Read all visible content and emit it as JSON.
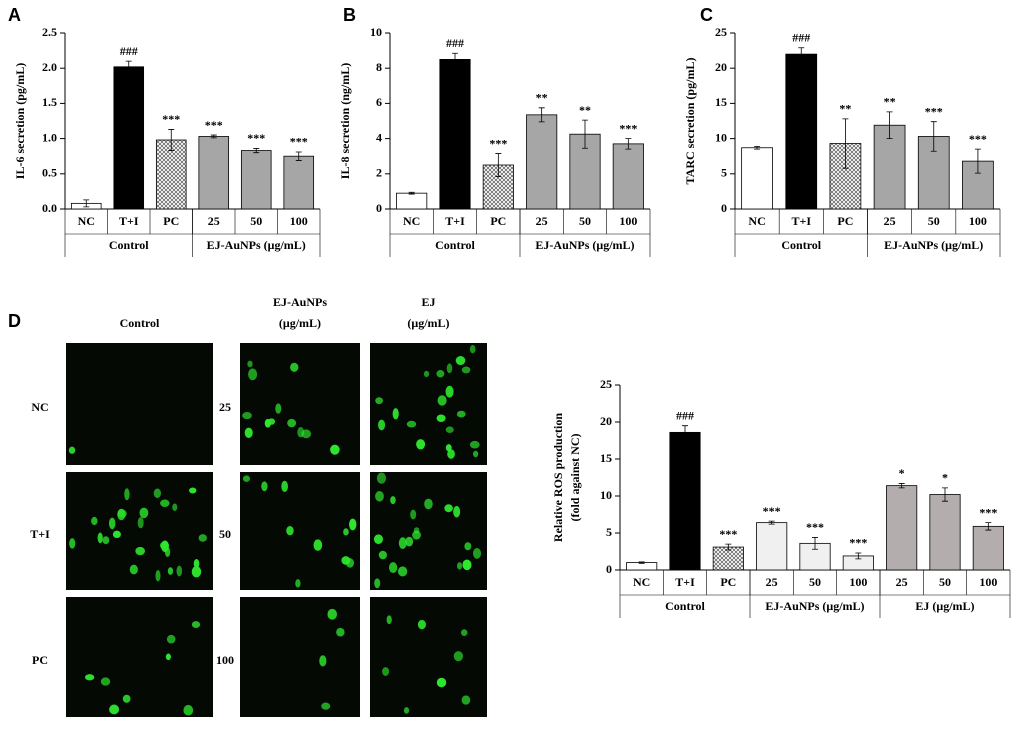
{
  "chart_data": [
    {
      "type": "bar",
      "panel": "A",
      "ylabel": [
        "IL-6 secretion (pg/mL)"
      ],
      "categories": [
        "NC",
        "T+I",
        "PC",
        "25",
        "50",
        "100"
      ],
      "values": [
        0.08,
        2.02,
        0.98,
        1.03,
        0.83,
        0.75
      ],
      "errors": [
        0.05,
        0.08,
        0.15,
        0.02,
        0.03,
        0.06
      ],
      "annotations": [
        null,
        "###",
        "***",
        "***",
        "***",
        "***"
      ],
      "colors": [
        "#ffffff",
        "#000000",
        "#ffffff",
        "#a6a6a6",
        "#a6a6a6",
        "#a6a6a6"
      ],
      "hatch": [
        false,
        false,
        true,
        false,
        false,
        false
      ],
      "groups": [
        {
          "label": "Control",
          "span": 3
        },
        {
          "label": "EJ-AuNPs (μg/mL)",
          "span": 3
        }
      ],
      "ylim": [
        0,
        2.5
      ],
      "yticks": [
        {
          "value": 0,
          "label": "0.0"
        },
        0.5,
        {
          "value": 1,
          "label": "1.0"
        },
        1.5,
        {
          "value": 2,
          "label": "2.0"
        },
        2.5
      ]
    },
    {
      "type": "bar",
      "panel": "B",
      "ylabel": [
        "IL-8 secretion (ng/mL)"
      ],
      "categories": [
        "NC",
        "T+I",
        "PC",
        "25",
        "50",
        "100"
      ],
      "values": [
        0.9,
        8.5,
        2.5,
        5.35,
        4.25,
        3.7
      ],
      "errors": [
        0.05,
        0.35,
        0.65,
        0.4,
        0.8,
        0.3
      ],
      "annotations": [
        null,
        "###",
        "***",
        "**",
        "**",
        "***"
      ],
      "colors": [
        "#ffffff",
        "#000000",
        "#ffffff",
        "#a6a6a6",
        "#a6a6a6",
        "#a6a6a6"
      ],
      "hatch": [
        false,
        false,
        true,
        false,
        false,
        false
      ],
      "groups": [
        {
          "label": "Control",
          "span": 3
        },
        {
          "label": "EJ-AuNPs (μg/mL)",
          "span": 3
        }
      ],
      "ylim": [
        0,
        10
      ],
      "yticks": [
        0,
        2,
        4,
        6,
        8,
        10
      ]
    },
    {
      "type": "bar",
      "panel": "C",
      "ylabel": [
        "TARC secretion (pg/mL)"
      ],
      "categories": [
        "NC",
        "T+I",
        "PC",
        "25",
        "50",
        "100"
      ],
      "values": [
        8.7,
        22.0,
        9.3,
        11.9,
        10.3,
        6.8
      ],
      "errors": [
        0.2,
        0.9,
        3.5,
        1.9,
        2.1,
        1.7
      ],
      "annotations": [
        null,
        "###",
        "**",
        "**",
        "***",
        "***"
      ],
      "colors": [
        "#ffffff",
        "#000000",
        "#ffffff",
        "#a6a6a6",
        "#a6a6a6",
        "#a6a6a6"
      ],
      "hatch": [
        false,
        false,
        true,
        false,
        false,
        false
      ],
      "groups": [
        {
          "label": "Control",
          "span": 3
        },
        {
          "label": "EJ-AuNPs (μg/mL)",
          "span": 3
        }
      ],
      "ylim": [
        0,
        25
      ],
      "yticks": [
        0,
        5,
        10,
        15,
        20,
        25
      ]
    },
    {
      "type": "bar",
      "ylabel": [
        "Relative ROS production",
        "(fold against NC)"
      ],
      "categories": [
        "NC",
        "T+I",
        "PC",
        "25",
        "50",
        "100",
        "25",
        "50",
        "100"
      ],
      "values": [
        1.0,
        18.6,
        3.1,
        6.4,
        3.6,
        1.9,
        11.4,
        10.2,
        5.9
      ],
      "errors": [
        0.1,
        0.9,
        0.4,
        0.2,
        0.8,
        0.4,
        0.3,
        0.9,
        0.5
      ],
      "annotations": [
        null,
        "###",
        "***",
        "***",
        "***",
        "***",
        "*",
        "*",
        "***"
      ],
      "colors": [
        "#ffffff",
        "#000000",
        "#ffffff",
        "#f0f0f0",
        "#f0f0f0",
        "#f0f0f0",
        "#b3adad",
        "#b3adad",
        "#b3adad"
      ],
      "hatch": [
        false,
        false,
        true,
        false,
        false,
        false,
        false,
        false,
        false
      ],
      "groups": [
        {
          "label": "Control",
          "span": 3
        },
        {
          "label": "EJ-AuNPs (μg/mL)",
          "span": 3
        },
        {
          "label": "EJ (μg/mL)",
          "span": 3
        }
      ],
      "ylim": [
        0,
        25
      ],
      "yticks": [
        0,
        5,
        10,
        15,
        20,
        25
      ]
    }
  ],
  "image_panel": {
    "label": "D",
    "column_headers": [
      [
        "Control"
      ],
      [
        "EJ-AuNPs",
        "(μg/mL)"
      ],
      [
        "EJ",
        "(μg/mL)"
      ]
    ],
    "row_labels": [
      [
        "NC",
        "T+I",
        "PC"
      ],
      [
        "25",
        "50",
        "100"
      ]
    ]
  }
}
